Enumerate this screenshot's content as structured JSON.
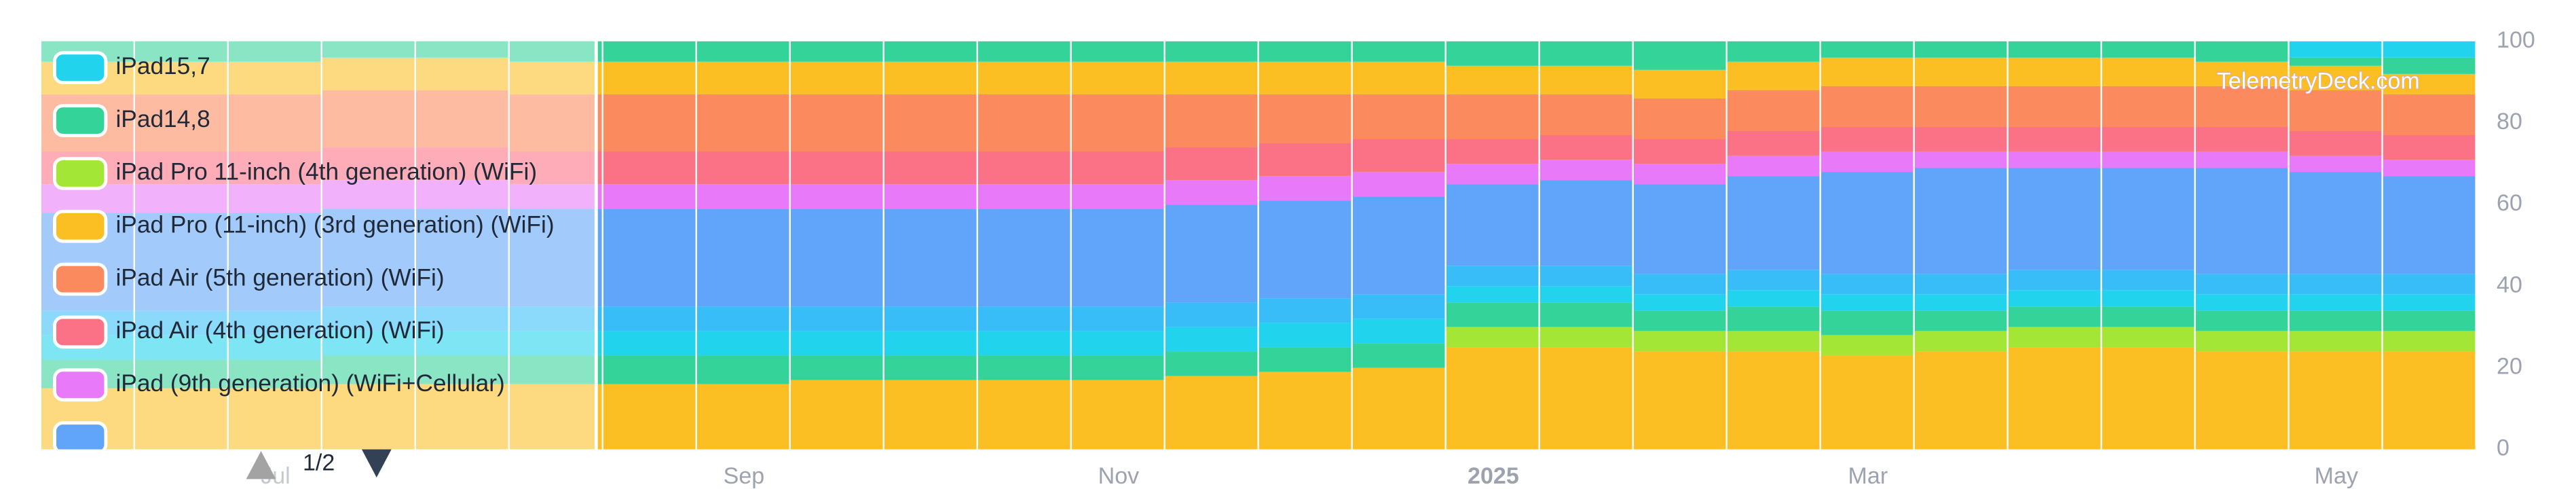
{
  "chart_data": {
    "type": "stacked_bar",
    "categories": [
      null,
      null,
      "Jul",
      null,
      null,
      null,
      null,
      "Sep",
      null,
      null,
      null,
      "Nov",
      null,
      null,
      null,
      "2025",
      null,
      null,
      null,
      "Mar",
      null,
      null,
      null,
      null,
      "May",
      null
    ],
    "series": [
      {
        "name": "iPad Pro (11-inch) (3rd generation) (WiFi)",
        "color": "#fbbf24",
        "values": [
          15,
          15,
          15,
          16,
          16,
          16,
          16,
          16,
          17,
          17,
          17,
          17,
          18,
          19,
          20,
          25,
          25,
          24,
          24,
          23,
          24,
          25,
          25,
          24,
          24,
          24
        ]
      },
      {
        "name": "iPad Pro 11-inch (4th generation) (WiFi)",
        "color": "#a3e635",
        "values": [
          0,
          0,
          0,
          0,
          0,
          0,
          0,
          0,
          0,
          0,
          0,
          0,
          0,
          0,
          0,
          5,
          5,
          5,
          5,
          5,
          5,
          5,
          5,
          5,
          5,
          5
        ]
      },
      {
        "name": "iPad14,8",
        "color": "#34d399",
        "values": [
          7,
          7,
          7,
          7,
          7,
          7,
          7,
          7,
          6,
          6,
          6,
          6,
          6,
          6,
          6,
          6,
          6,
          5,
          6,
          6,
          5,
          5,
          5,
          5,
          5,
          5
        ]
      },
      {
        "name": "iPad15,7",
        "color": "#22d3ee",
        "values": [
          6,
          6,
          6,
          6,
          6,
          6,
          6,
          6,
          6,
          6,
          6,
          6,
          6,
          6,
          6,
          4,
          4,
          4,
          4,
          4,
          4,
          4,
          4,
          4,
          4,
          4
        ]
      },
      {
        "color": "#38bdf8",
        "values": [
          6,
          6,
          6,
          6,
          6,
          6,
          6,
          6,
          6,
          6,
          6,
          6,
          6,
          6,
          6,
          5,
          5,
          5,
          5,
          5,
          5,
          5,
          5,
          5,
          5,
          5
        ]
      },
      {
        "color": "#60a5fa",
        "values": [
          24,
          24,
          24,
          24,
          24,
          24,
          24,
          24,
          24,
          24,
          24,
          24,
          24,
          24,
          24,
          20,
          21,
          22,
          23,
          25,
          26,
          25,
          25,
          26,
          25,
          24
        ]
      },
      {
        "name": "iPad (9th generation) (WiFi+Cellular)",
        "color": "#e879f9",
        "values": [
          7,
          7,
          7,
          7,
          7,
          6,
          6,
          6,
          6,
          6,
          6,
          6,
          6,
          6,
          6,
          5,
          5,
          5,
          5,
          5,
          4,
          4,
          4,
          4,
          4,
          4
        ]
      },
      {
        "name": "iPad Air (4th generation) (WiFi)",
        "color": "#fb7185",
        "values": [
          8,
          8,
          8,
          8,
          8,
          8,
          8,
          8,
          8,
          8,
          8,
          8,
          8,
          8,
          8,
          6,
          6,
          6,
          6,
          6,
          6,
          6,
          6,
          6,
          6,
          6
        ]
      },
      {
        "name": "iPad Air (5th generation) (WiFi)",
        "color": "#fb8a5e",
        "values": [
          14,
          14,
          14,
          14,
          14,
          14,
          14,
          14,
          14,
          14,
          14,
          14,
          13,
          12,
          11,
          11,
          10,
          10,
          10,
          10,
          10,
          10,
          10,
          10,
          10,
          10
        ]
      },
      {
        "color": "#fbbf24",
        "values": [
          8,
          8,
          8,
          8,
          8,
          8,
          8,
          8,
          8,
          8,
          8,
          8,
          8,
          8,
          8,
          7,
          7,
          7,
          7,
          7,
          7,
          7,
          7,
          6,
          6,
          5
        ]
      },
      {
        "color": "#34d399",
        "values": [
          5,
          5,
          5,
          4,
          4,
          5,
          5,
          5,
          5,
          5,
          5,
          5,
          5,
          5,
          5,
          6,
          6,
          7,
          5,
          4,
          4,
          4,
          4,
          5,
          2,
          4
        ]
      },
      {
        "color": "#22d3ee",
        "values": [
          0,
          0,
          0,
          0,
          0,
          0,
          0,
          0,
          0,
          0,
          0,
          0,
          0,
          0,
          0,
          0,
          0,
          0,
          0,
          0,
          0,
          0,
          0,
          0,
          4,
          4
        ]
      }
    ],
    "ylim": [
      0,
      100
    ],
    "yticks": [
      0,
      20,
      40,
      60,
      80,
      100
    ],
    "grid": false,
    "legend_page": "1/2",
    "watermark": "TelemetryDeck.com"
  }
}
